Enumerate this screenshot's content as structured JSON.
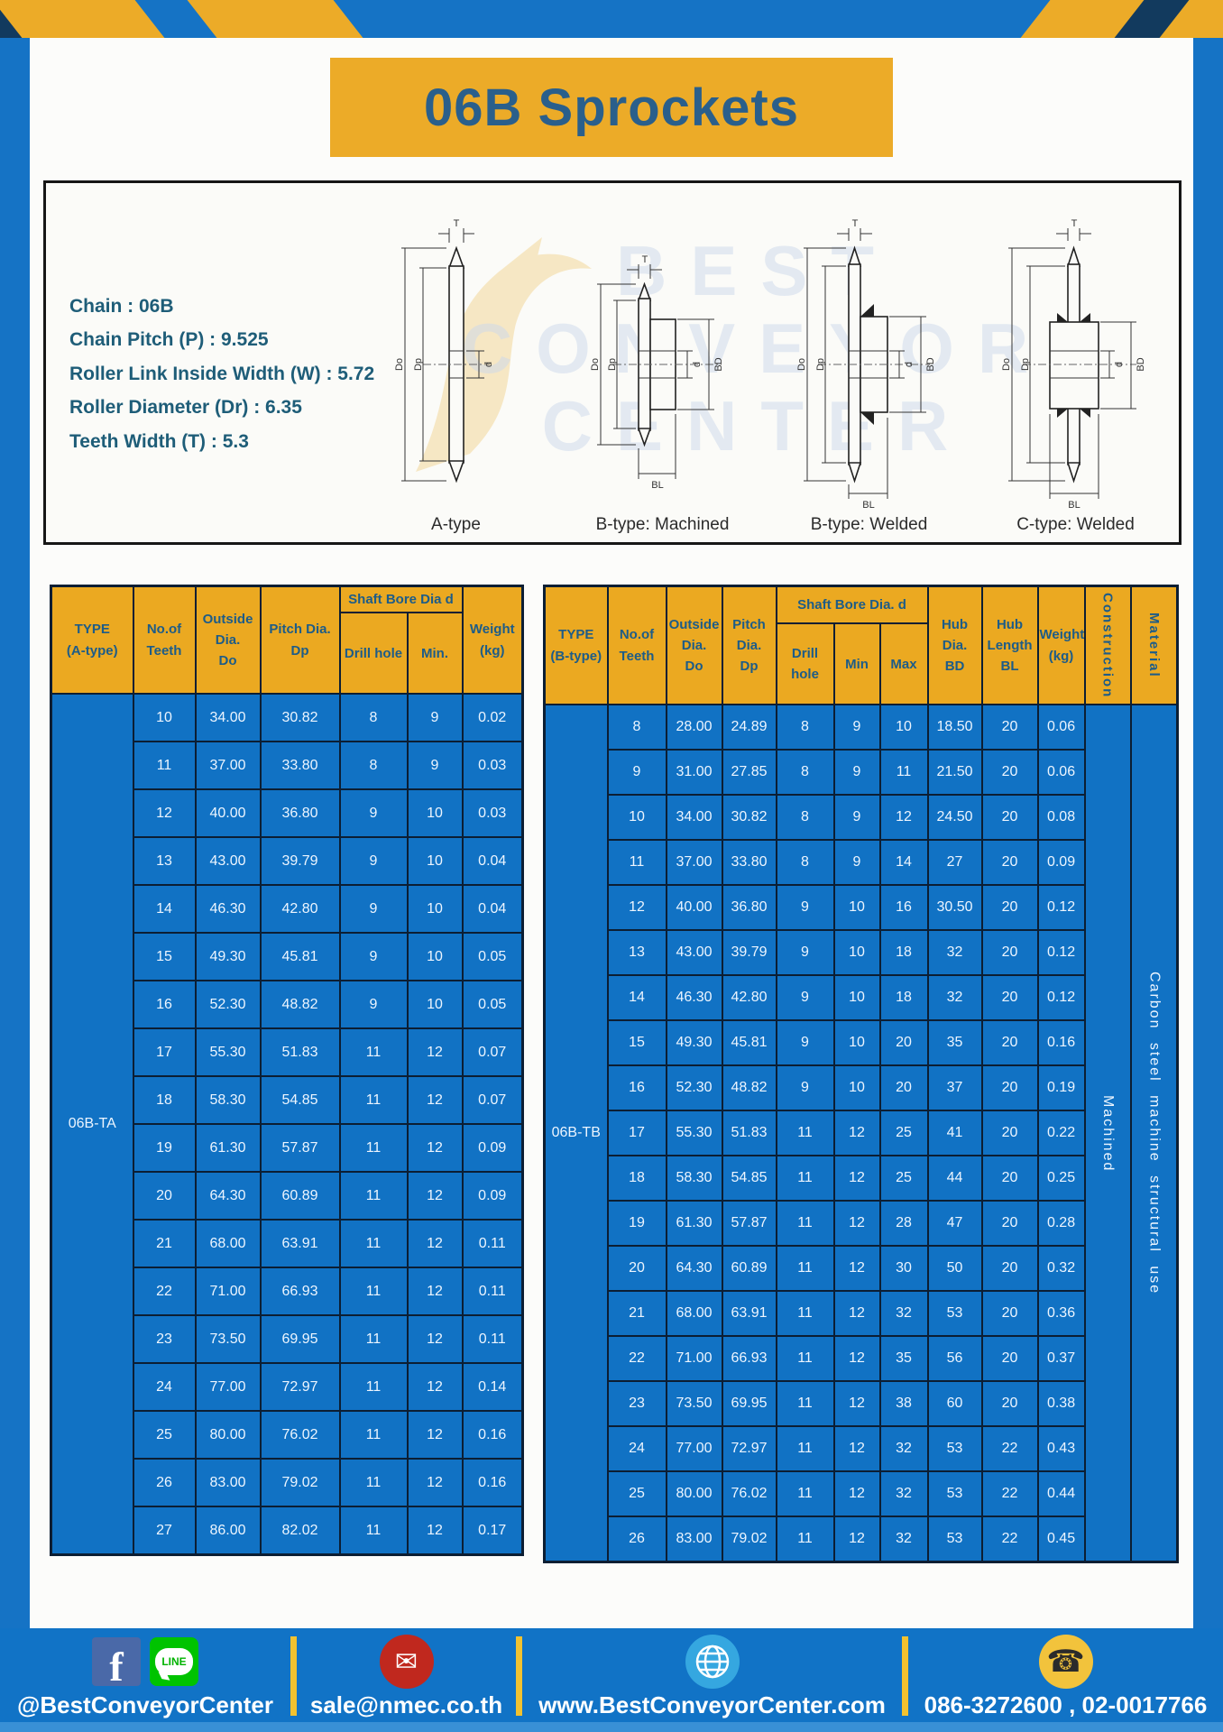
{
  "page": {
    "title": "06B Sprockets"
  },
  "specs": {
    "lines": [
      "Chain  : 06B",
      "Chain Pitch (P)  :  9.525",
      "Roller Link Inside Width (W)  :  5.72",
      "Roller Diameter (Dr)  : 6.35",
      "Teeth Width (T)  :  5.3"
    ]
  },
  "drawings": {
    "captions": [
      "A-type",
      "B-type: Machined",
      "B-type: Welded",
      "C-type: Welded"
    ],
    "dims": {
      "T": "T",
      "Do": "Do",
      "Dp": "Dp",
      "d": "d",
      "BD": "BD",
      "BL": "BL"
    },
    "watermark": [
      "BEST",
      "CONVEYOR",
      "CENTER"
    ]
  },
  "table_a": {
    "headers": {
      "type": "TYPE\n(A-type)",
      "teeth": "No.of\nTeeth",
      "outside": "Outside\nDia.\nDo",
      "pitch": "Pitch Dia.\nDp",
      "shaft_group": "Shaft Bore Dia d",
      "drill": "Drill hole",
      "min": "Min.",
      "weight": "Weight\n(kg)"
    },
    "type_label": "06B-TA",
    "rows": [
      [
        "10",
        "34.00",
        "30.82",
        "8",
        "9",
        "0.02"
      ],
      [
        "11",
        "37.00",
        "33.80",
        "8",
        "9",
        "0.03"
      ],
      [
        "12",
        "40.00",
        "36.80",
        "9",
        "10",
        "0.03"
      ],
      [
        "13",
        "43.00",
        "39.79",
        "9",
        "10",
        "0.04"
      ],
      [
        "14",
        "46.30",
        "42.80",
        "9",
        "10",
        "0.04"
      ],
      [
        "15",
        "49.30",
        "45.81",
        "9",
        "10",
        "0.05"
      ],
      [
        "16",
        "52.30",
        "48.82",
        "9",
        "10",
        "0.05"
      ],
      [
        "17",
        "55.30",
        "51.83",
        "11",
        "12",
        "0.07"
      ],
      [
        "18",
        "58.30",
        "54.85",
        "11",
        "12",
        "0.07"
      ],
      [
        "19",
        "61.30",
        "57.87",
        "11",
        "12",
        "0.09"
      ],
      [
        "20",
        "64.30",
        "60.89",
        "11",
        "12",
        "0.09"
      ],
      [
        "21",
        "68.00",
        "63.91",
        "11",
        "12",
        "0.11"
      ],
      [
        "22",
        "71.00",
        "66.93",
        "11",
        "12",
        "0.11"
      ],
      [
        "23",
        "73.50",
        "69.95",
        "11",
        "12",
        "0.11"
      ],
      [
        "24",
        "77.00",
        "72.97",
        "11",
        "12",
        "0.14"
      ],
      [
        "25",
        "80.00",
        "76.02",
        "11",
        "12",
        "0.16"
      ],
      [
        "26",
        "83.00",
        "79.02",
        "11",
        "12",
        "0.16"
      ],
      [
        "27",
        "86.00",
        "82.02",
        "11",
        "12",
        "0.17"
      ]
    ]
  },
  "table_b": {
    "headers": {
      "type": "TYPE\n(B-type)",
      "teeth": "No.of\nTeeth",
      "outside": "Outside\nDia.\nDo",
      "pitch": "Pitch\nDia.\nDp",
      "shaft_group": "Shaft Bore Dia.  d",
      "drill": "Drill hole",
      "min": "Min",
      "max": "Max",
      "hub_dia": "Hub\nDia.\nBD",
      "hub_len": "Hub\nLength\nBL",
      "weight": "Weight\n(kg)",
      "construction": "Construction",
      "material": "Material"
    },
    "type_label": "06B-TB",
    "construction_value": "Machined",
    "material_value": "Carbon steel machine structural use",
    "rows": [
      [
        "8",
        "28.00",
        "24.89",
        "8",
        "9",
        "10",
        "18.50",
        "20",
        "0.06"
      ],
      [
        "9",
        "31.00",
        "27.85",
        "8",
        "9",
        "11",
        "21.50",
        "20",
        "0.06"
      ],
      [
        "10",
        "34.00",
        "30.82",
        "8",
        "9",
        "12",
        "24.50",
        "20",
        "0.08"
      ],
      [
        "11",
        "37.00",
        "33.80",
        "8",
        "9",
        "14",
        "27",
        "20",
        "0.09"
      ],
      [
        "12",
        "40.00",
        "36.80",
        "9",
        "10",
        "16",
        "30.50",
        "20",
        "0.12"
      ],
      [
        "13",
        "43.00",
        "39.79",
        "9",
        "10",
        "18",
        "32",
        "20",
        "0.12"
      ],
      [
        "14",
        "46.30",
        "42.80",
        "9",
        "10",
        "18",
        "32",
        "20",
        "0.12"
      ],
      [
        "15",
        "49.30",
        "45.81",
        "9",
        "10",
        "20",
        "35",
        "20",
        "0.16"
      ],
      [
        "16",
        "52.30",
        "48.82",
        "9",
        "10",
        "20",
        "37",
        "20",
        "0.19"
      ],
      [
        "17",
        "55.30",
        "51.83",
        "11",
        "12",
        "25",
        "41",
        "20",
        "0.22"
      ],
      [
        "18",
        "58.30",
        "54.85",
        "11",
        "12",
        "25",
        "44",
        "20",
        "0.25"
      ],
      [
        "19",
        "61.30",
        "57.87",
        "11",
        "12",
        "28",
        "47",
        "20",
        "0.28"
      ],
      [
        "20",
        "64.30",
        "60.89",
        "11",
        "12",
        "30",
        "50",
        "20",
        "0.32"
      ],
      [
        "21",
        "68.00",
        "63.91",
        "11",
        "12",
        "32",
        "53",
        "20",
        "0.36"
      ],
      [
        "22",
        "71.00",
        "66.93",
        "11",
        "12",
        "35",
        "56",
        "20",
        "0.37"
      ],
      [
        "23",
        "73.50",
        "69.95",
        "11",
        "12",
        "38",
        "60",
        "20",
        "0.38"
      ],
      [
        "24",
        "77.00",
        "72.97",
        "11",
        "12",
        "32",
        "53",
        "22",
        "0.43"
      ],
      [
        "25",
        "80.00",
        "76.02",
        "11",
        "12",
        "32",
        "53",
        "22",
        "0.44"
      ],
      [
        "26",
        "83.00",
        "79.02",
        "11",
        "12",
        "32",
        "53",
        "22",
        "0.45"
      ]
    ]
  },
  "footer": {
    "line_label": "LINE",
    "fb_label": "f",
    "social_handle": "@BestConveyorCenter",
    "email": "sale@nmec.co.th",
    "website": "www.BestConveyorCenter.com",
    "phones": "086-3272600 , 02-0017766"
  }
}
